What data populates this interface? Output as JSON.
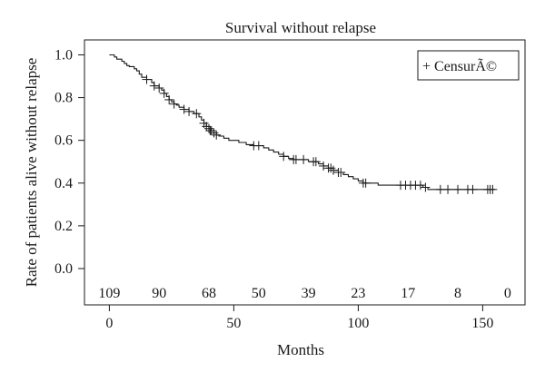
{
  "chart_data": {
    "type": "line",
    "title": "Survival without relapse",
    "xlabel": "Months",
    "ylabel": "Rate of patients alive without relapse",
    "xlim": [
      -10,
      167
    ],
    "ylim": [
      -0.17,
      1.07
    ],
    "x_ticks": [
      0,
      50,
      100,
      150
    ],
    "y_ticks": [
      0.0,
      0.2,
      0.4,
      0.6,
      0.8,
      1.0
    ],
    "y_tick_labels": [
      "0.0",
      "0.2",
      "0.4",
      "0.6",
      "0.8",
      "1.0"
    ],
    "grid": false,
    "legend": {
      "position": "top-right",
      "entries": [
        "+ CensurÃ©"
      ]
    },
    "series": [
      {
        "steps": [
          [
            0,
            1.0
          ],
          [
            2,
            0.99
          ],
          [
            3,
            0.98
          ],
          [
            5,
            0.97
          ],
          [
            6,
            0.96
          ],
          [
            7,
            0.95
          ],
          [
            8,
            0.945
          ],
          [
            10,
            0.935
          ],
          [
            11,
            0.925
          ],
          [
            12,
            0.91
          ],
          [
            13,
            0.895
          ],
          [
            15,
            0.885
          ],
          [
            17,
            0.87
          ],
          [
            18,
            0.855
          ],
          [
            20,
            0.845
          ],
          [
            21,
            0.835
          ],
          [
            22,
            0.82
          ],
          [
            23,
            0.805
          ],
          [
            24,
            0.79
          ],
          [
            25,
            0.78
          ],
          [
            26,
            0.77
          ],
          [
            27,
            0.765
          ],
          [
            28,
            0.755
          ],
          [
            30,
            0.745
          ],
          [
            32,
            0.735
          ],
          [
            34,
            0.725
          ],
          [
            36,
            0.71
          ],
          [
            37,
            0.695
          ],
          [
            38,
            0.68
          ],
          [
            39,
            0.665
          ],
          [
            40,
            0.655
          ],
          [
            41,
            0.645
          ],
          [
            42,
            0.635
          ],
          [
            43,
            0.625
          ],
          [
            44,
            0.62
          ],
          [
            46,
            0.61
          ],
          [
            48,
            0.6
          ],
          [
            52,
            0.59
          ],
          [
            55,
            0.58
          ],
          [
            58,
            0.575
          ],
          [
            62,
            0.565
          ],
          [
            64,
            0.555
          ],
          [
            66,
            0.545
          ],
          [
            68,
            0.535
          ],
          [
            70,
            0.525
          ],
          [
            72,
            0.515
          ],
          [
            74,
            0.51
          ],
          [
            80,
            0.5
          ],
          [
            84,
            0.49
          ],
          [
            86,
            0.48
          ],
          [
            88,
            0.47
          ],
          [
            90,
            0.46
          ],
          [
            92,
            0.45
          ],
          [
            94,
            0.44
          ],
          [
            96,
            0.43
          ],
          [
            98,
            0.42
          ],
          [
            100,
            0.41
          ],
          [
            102,
            0.4
          ],
          [
            108,
            0.39
          ],
          [
            126,
            0.38
          ],
          [
            128,
            0.37
          ],
          [
            155,
            0.37
          ]
        ],
        "censored": [
          [
            15,
            0.885
          ],
          [
            18,
            0.855
          ],
          [
            20,
            0.845
          ],
          [
            22,
            0.82
          ],
          [
            24,
            0.79
          ],
          [
            26,
            0.77
          ],
          [
            30,
            0.745
          ],
          [
            32,
            0.735
          ],
          [
            35,
            0.725
          ],
          [
            38,
            0.68
          ],
          [
            39,
            0.665
          ],
          [
            40,
            0.655
          ],
          [
            40.5,
            0.645
          ],
          [
            41,
            0.645
          ],
          [
            42,
            0.635
          ],
          [
            43,
            0.625
          ],
          [
            58,
            0.575
          ],
          [
            60,
            0.575
          ],
          [
            70,
            0.525
          ],
          [
            74,
            0.51
          ],
          [
            75,
            0.51
          ],
          [
            78,
            0.51
          ],
          [
            82,
            0.5
          ],
          [
            83,
            0.5
          ],
          [
            86,
            0.48
          ],
          [
            88,
            0.47
          ],
          [
            89,
            0.47
          ],
          [
            90,
            0.46
          ],
          [
            92,
            0.45
          ],
          [
            93,
            0.45
          ],
          [
            102,
            0.4
          ],
          [
            103,
            0.4
          ],
          [
            117,
            0.39
          ],
          [
            119,
            0.39
          ],
          [
            121,
            0.39
          ],
          [
            123,
            0.39
          ],
          [
            125,
            0.39
          ],
          [
            127,
            0.38
          ],
          [
            133,
            0.37
          ],
          [
            136,
            0.37
          ],
          [
            140,
            0.37
          ],
          [
            144,
            0.37
          ],
          [
            146,
            0.37
          ],
          [
            152,
            0.37
          ],
          [
            153,
            0.37
          ],
          [
            154,
            0.37
          ]
        ]
      }
    ],
    "at_risk": {
      "y": -0.11,
      "x": [
        0,
        20,
        40,
        60,
        80,
        100,
        120,
        140,
        160
      ],
      "labels": [
        "109",
        "90",
        "68",
        "50",
        "39",
        "23",
        "17",
        "8",
        "0"
      ]
    }
  }
}
